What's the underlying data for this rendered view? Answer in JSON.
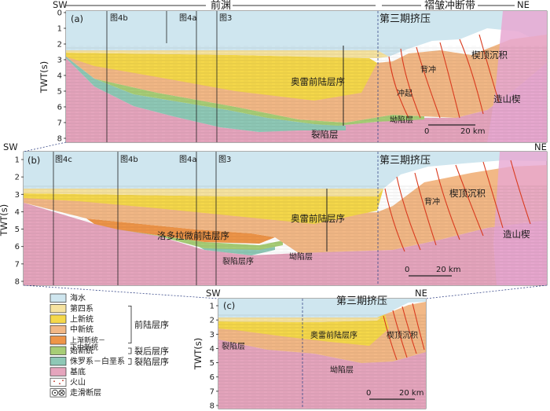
{
  "top": {
    "sw": "SW",
    "ne": "NE",
    "foredeep": "前渊",
    "fold_thrust_belt": "褶皱冲断带"
  },
  "panel_a": {
    "label": "(a)",
    "fig_refs": [
      "图4b",
      "图4a",
      "图3"
    ],
    "phase3": "第三期挤压",
    "foreland_seq": "奥雷前陆层序",
    "rift_layer": "裂陷层",
    "depression_layer": "坳陷层",
    "anticline": "背冲",
    "uplift": "冲起",
    "wedge_top": "楔顶沉积",
    "orogenic_wedge": "造山楔",
    "scale_zero": "0",
    "scale_km": "20 km",
    "ticks": [
      "0",
      "1",
      "2",
      "3",
      "4",
      "5",
      "6",
      "7",
      "8"
    ]
  },
  "panel_b": {
    "label": "(b)",
    "sw": "SW",
    "ne": "NE",
    "fig_refs": [
      "图4c",
      "图4b",
      "图4a",
      "图3"
    ],
    "phase3": "第三期挤压",
    "foreland_seq": "奥雷前陆层序",
    "pre_foreland": "洛多拉微前陆层序",
    "rift_seq": "裂陷层序",
    "depression_layer": "坳陷层",
    "anticline": "背冲",
    "wedge_top": "楔顶沉积",
    "orogenic_wedge": "造山楔",
    "scale_zero": "0",
    "scale_km": "20 km",
    "ticks": [
      "1",
      "2",
      "3",
      "4",
      "5",
      "6",
      "7",
      "8"
    ]
  },
  "panel_c": {
    "label": "(c)",
    "sw": "SW",
    "ne": "NE",
    "phase3": "第三期挤压",
    "foreland_seq": "奥雷前陆层序",
    "wedge_top": "楔顶沉积",
    "rift_layer": "裂陷层",
    "depression_layer": "坳陷层",
    "scale_zero": "0",
    "scale_km": "20 km",
    "ticks": [
      "1",
      "2",
      "3",
      "4",
      "5",
      "6",
      "7",
      "8"
    ]
  },
  "axis_label": "TWT(s)",
  "legend": {
    "items": [
      {
        "label": "海水",
        "color": "#cfe6ef"
      },
      {
        "label": "第四系",
        "color": "#f6e3a0"
      },
      {
        "label": "上新统",
        "color": "#f5d84a"
      },
      {
        "label": "中新统",
        "color": "#f2b886"
      },
      {
        "label": "上渐新统－\n下中新统",
        "color": "#ee9548"
      },
      {
        "label": "始新统",
        "color": "#a7cd76"
      },
      {
        "label": "侏罗系－白垩系",
        "color": "#8ec8b6"
      },
      {
        "label": "基底",
        "color": "#e5a5bd"
      },
      {
        "label": "火山",
        "color": "#ffffff"
      },
      {
        "label": "走滑断层",
        "color": "#ffffff"
      }
    ],
    "brace_foreland": "前陆层序",
    "brace_post_rift": "裂后层序",
    "brace_rift": "裂陷层序"
  },
  "colors": {
    "sea": "#cfe6ef",
    "quaternary": "#f6e3a0",
    "pliocene": "#f5d84a",
    "miocene": "#f2b886",
    "olig": "#ee9548",
    "eocene": "#a7cd76",
    "jurassic": "#8ec8b6",
    "basement": "#e5a5bd",
    "wedge": "#e7a8d2",
    "fault": "#d93a1e"
  }
}
